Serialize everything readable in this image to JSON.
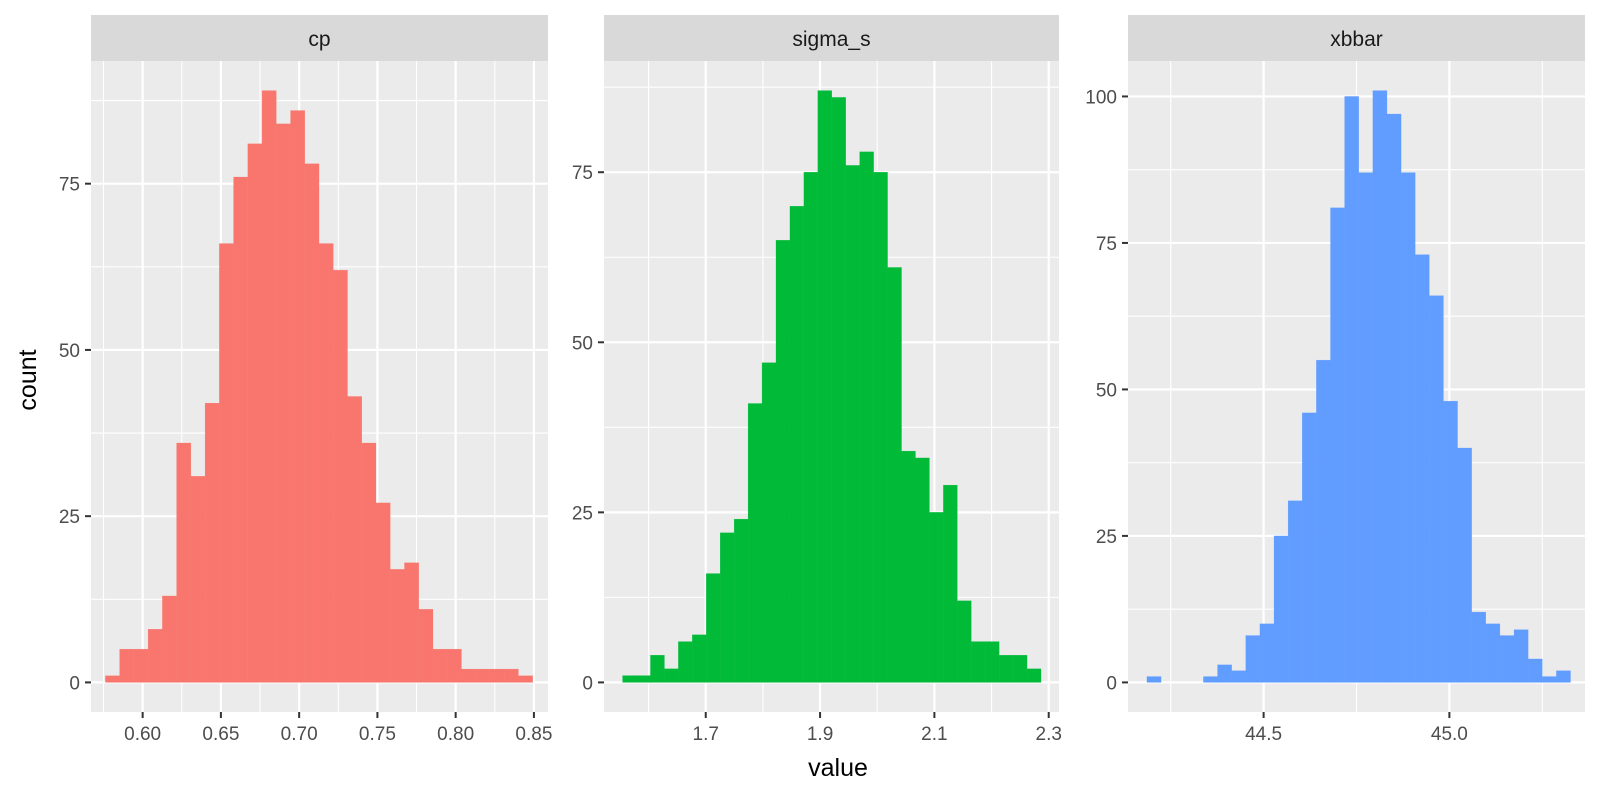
{
  "y_title": "count",
  "x_title": "value",
  "colors": {
    "panel_bg": "#EBEBEB",
    "strip_bg": "#D9D9D9",
    "grid": "#FFFFFF",
    "tick": "#333333"
  },
  "chart_data": [
    {
      "type": "bar",
      "facet": "cp",
      "color": "#F8766D",
      "xlim": [
        0.567,
        0.859
      ],
      "ylim": [
        -4.45,
        93.45
      ],
      "x_ticks": [
        0.6,
        0.65,
        0.7,
        0.75,
        0.8,
        0.85
      ],
      "x_tick_labels": [
        "0.60",
        "0.65",
        "0.70",
        "0.75",
        "0.80",
        "0.85"
      ],
      "y_ticks": [
        0,
        25,
        50,
        75
      ],
      "y_tick_labels": [
        "0",
        "25",
        "50",
        "75"
      ],
      "bins": [
        [
          0.5762,
          0.5853,
          1
        ],
        [
          0.5853,
          0.5944,
          5
        ],
        [
          0.5944,
          0.6035,
          5
        ],
        [
          0.6035,
          0.6126,
          8
        ],
        [
          0.6126,
          0.6217,
          13
        ],
        [
          0.6217,
          0.6308,
          36
        ],
        [
          0.6308,
          0.6399,
          31
        ],
        [
          0.6399,
          0.649,
          42
        ],
        [
          0.649,
          0.6581,
          66
        ],
        [
          0.6581,
          0.6672,
          76
        ],
        [
          0.6672,
          0.6763,
          81
        ],
        [
          0.6763,
          0.6854,
          89
        ],
        [
          0.6854,
          0.6945,
          84
        ],
        [
          0.6945,
          0.7036,
          86
        ],
        [
          0.7036,
          0.7127,
          78
        ],
        [
          0.7127,
          0.7218,
          66
        ],
        [
          0.7218,
          0.7309,
          62
        ],
        [
          0.7309,
          0.74,
          43
        ],
        [
          0.74,
          0.7491,
          36
        ],
        [
          0.7491,
          0.7582,
          27
        ],
        [
          0.7582,
          0.7673,
          17
        ],
        [
          0.7673,
          0.7764,
          18
        ],
        [
          0.7764,
          0.7855,
          11
        ],
        [
          0.7855,
          0.7946,
          5
        ],
        [
          0.7946,
          0.8037,
          5
        ],
        [
          0.8037,
          0.8128,
          2
        ],
        [
          0.8128,
          0.8219,
          2
        ],
        [
          0.8219,
          0.831,
          2
        ],
        [
          0.831,
          0.8401,
          2
        ],
        [
          0.8401,
          0.8492,
          1
        ]
      ]
    },
    {
      "type": "bar",
      "facet": "sigma_s",
      "color": "#00BA38",
      "xlim": [
        1.522,
        2.318
      ],
      "ylim": [
        -4.35,
        91.35
      ],
      "x_ticks": [
        1.7,
        1.9,
        2.1,
        2.3
      ],
      "x_tick_labels": [
        "1.7",
        "1.9",
        "2.1",
        "2.3"
      ],
      "y_ticks": [
        0,
        25,
        50,
        75
      ],
      "y_tick_labels": [
        "0",
        "25",
        "50",
        "75"
      ],
      "bins": [
        [
          1.5545,
          1.5789,
          1
        ],
        [
          1.5789,
          1.6033,
          1
        ],
        [
          1.6033,
          1.6277,
          4
        ],
        [
          1.6277,
          1.6521,
          2
        ],
        [
          1.6521,
          1.6765,
          6
        ],
        [
          1.6765,
          1.7009,
          7
        ],
        [
          1.7009,
          1.7253,
          16
        ],
        [
          1.7253,
          1.7497,
          22
        ],
        [
          1.7497,
          1.7741,
          24
        ],
        [
          1.7741,
          1.7985,
          41
        ],
        [
          1.7985,
          1.8229,
          47
        ],
        [
          1.8229,
          1.8473,
          65
        ],
        [
          1.8473,
          1.8717,
          70
        ],
        [
          1.8717,
          1.8961,
          75
        ],
        [
          1.8961,
          1.9205,
          87
        ],
        [
          1.9205,
          1.9449,
          86
        ],
        [
          1.9449,
          1.9693,
          76
        ],
        [
          1.9693,
          1.9937,
          78
        ],
        [
          1.9937,
          2.0181,
          75
        ],
        [
          2.0181,
          2.0425,
          61
        ],
        [
          2.0425,
          2.0669,
          34
        ],
        [
          2.0669,
          2.0913,
          33
        ],
        [
          2.0913,
          2.1157,
          25
        ],
        [
          2.1157,
          2.1401,
          29
        ],
        [
          2.1401,
          2.1645,
          12
        ],
        [
          2.1645,
          2.1889,
          6
        ],
        [
          2.1889,
          2.2133,
          6
        ],
        [
          2.2133,
          2.2377,
          4
        ],
        [
          2.2377,
          2.2621,
          4
        ],
        [
          2.2621,
          2.2865,
          2
        ]
      ]
    },
    {
      "type": "bar",
      "facet": "xbbar",
      "color": "#619CFF",
      "xlim": [
        44.135,
        45.365
      ],
      "ylim": [
        -5.05,
        106.05
      ],
      "x_ticks": [
        44.5,
        45.0
      ],
      "x_tick_labels": [
        "44.5",
        "45.0"
      ],
      "x_minor_ticks": [
        44.25,
        44.75,
        45.25
      ],
      "y_ticks": [
        0,
        25,
        50,
        75,
        100
      ],
      "y_tick_labels": [
        "0",
        "25",
        "50",
        "75",
        "100"
      ],
      "bins": [
        [
          44.186,
          44.224,
          1
        ],
        [
          44.224,
          44.262,
          0
        ],
        [
          44.262,
          44.3,
          0
        ],
        [
          44.3,
          44.338,
          0
        ],
        [
          44.338,
          44.376,
          1
        ],
        [
          44.376,
          44.414,
          3
        ],
        [
          44.414,
          44.452,
          2
        ],
        [
          44.452,
          44.49,
          8
        ],
        [
          44.49,
          44.528,
          10
        ],
        [
          44.528,
          44.566,
          25
        ],
        [
          44.566,
          44.604,
          31
        ],
        [
          44.604,
          44.642,
          46
        ],
        [
          44.642,
          44.68,
          55
        ],
        [
          44.68,
          44.718,
          81
        ],
        [
          44.718,
          44.756,
          100
        ],
        [
          44.756,
          44.794,
          87
        ],
        [
          44.794,
          44.832,
          101
        ],
        [
          44.832,
          44.87,
          97
        ],
        [
          44.87,
          44.908,
          87
        ],
        [
          44.908,
          44.946,
          73
        ],
        [
          44.946,
          44.984,
          66
        ],
        [
          44.984,
          45.022,
          48
        ],
        [
          45.022,
          45.06,
          40
        ],
        [
          45.06,
          45.098,
          12
        ],
        [
          45.098,
          45.136,
          10
        ],
        [
          45.136,
          45.174,
          8
        ],
        [
          45.174,
          45.212,
          9
        ],
        [
          45.212,
          45.25,
          4
        ],
        [
          45.25,
          45.288,
          1
        ],
        [
          45.288,
          45.326,
          2
        ]
      ]
    }
  ]
}
